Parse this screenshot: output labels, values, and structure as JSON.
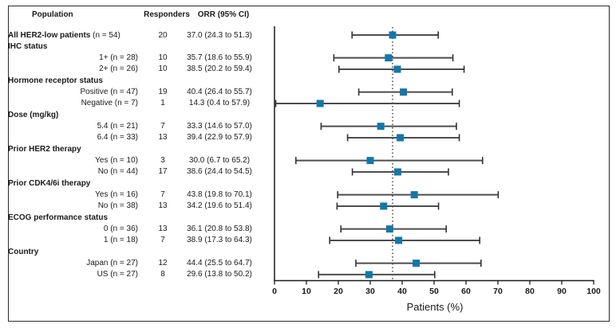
{
  "figure": {
    "columns": {
      "population": "Population",
      "responders": "Responders",
      "orr": "ORR (95% CI)"
    },
    "colors": {
      "marker": "#1477a8",
      "ci_line": "#4d4d4d",
      "ci_cap": "#333333",
      "axis": "#1a1a1a",
      "ref_line": "#1a1a1a"
    }
  },
  "chart_data": {
    "type": "forest",
    "xlabel": "Patients (%)",
    "xlim": [
      0,
      100
    ],
    "xticks": [
      0,
      10,
      20,
      30,
      40,
      50,
      60,
      70,
      80,
      90,
      100
    ],
    "ref_line": 37.0,
    "grid": false,
    "rows": [
      {
        "kind": "data",
        "bold_label": "All HER2-low patients",
        "label": " (n = 54)",
        "align": "left",
        "responders": "20",
        "orr": "37.0 (24.3 to 51.3)",
        "est": 37.0,
        "lo": 24.3,
        "hi": 51.3
      },
      {
        "kind": "group",
        "label": "IHC status"
      },
      {
        "kind": "data",
        "label": "1+ (n = 28)",
        "align": "right",
        "responders": "10",
        "orr": "35.7 (18.6 to 55.9)",
        "est": 35.7,
        "lo": 18.6,
        "hi": 55.9
      },
      {
        "kind": "data",
        "label": "2+ (n = 26)",
        "align": "right",
        "responders": "10",
        "orr": "38.5 (20.2 to 59.4)",
        "est": 38.5,
        "lo": 20.2,
        "hi": 59.4
      },
      {
        "kind": "group",
        "label": "Hormone receptor status"
      },
      {
        "kind": "data",
        "label": "Positive (n = 47)",
        "align": "right",
        "responders": "19",
        "orr": "40.4 (26.4 to 55.7)",
        "est": 40.4,
        "lo": 26.4,
        "hi": 55.7
      },
      {
        "kind": "data",
        "label": "Negative (n = 7)",
        "align": "right",
        "responders": "1",
        "orr": "14.3 (0.4 to 57.9)",
        "est": 14.3,
        "lo": 0.4,
        "hi": 57.9
      },
      {
        "kind": "group",
        "label": "Dose (mg/kg)"
      },
      {
        "kind": "data",
        "label": "5.4 (n = 21)",
        "align": "right",
        "responders": "7",
        "orr": "33.3 (14.6 to 57.0)",
        "est": 33.3,
        "lo": 14.6,
        "hi": 57.0
      },
      {
        "kind": "data",
        "label": "6.4 (n = 33)",
        "align": "right",
        "responders": "13",
        "orr": "39.4 (22.9 to 57.9)",
        "est": 39.4,
        "lo": 22.9,
        "hi": 57.9
      },
      {
        "kind": "group",
        "label": "Prior HER2 therapy"
      },
      {
        "kind": "data",
        "label": "Yes (n = 10)",
        "align": "right",
        "responders": "3",
        "orr": "30.0 (6.7 to 65.2)",
        "est": 30.0,
        "lo": 6.7,
        "hi": 65.2
      },
      {
        "kind": "data",
        "label": "No (n = 44)",
        "align": "right",
        "responders": "17",
        "orr": "38.6 (24.4 to 54.5)",
        "est": 38.6,
        "lo": 24.4,
        "hi": 54.5
      },
      {
        "kind": "group",
        "label": "Prior CDK4/6i therapy"
      },
      {
        "kind": "data",
        "label": "Yes (n = 16)",
        "align": "right",
        "responders": "7",
        "orr": "43.8 (19.8 to 70.1)",
        "est": 43.8,
        "lo": 19.8,
        "hi": 70.1
      },
      {
        "kind": "data",
        "label": "No (n = 38)",
        "align": "right",
        "responders": "13",
        "orr": "34.2 (19.6 to 51.4)",
        "est": 34.2,
        "lo": 19.6,
        "hi": 51.4
      },
      {
        "kind": "group",
        "label": "ECOG performance status"
      },
      {
        "kind": "data",
        "label": "0 (n = 36)",
        "align": "right",
        "responders": "13",
        "orr": "36.1 (20.8 to 53.8)",
        "est": 36.1,
        "lo": 20.8,
        "hi": 53.8
      },
      {
        "kind": "data",
        "label": "1 (n = 18)",
        "align": "right",
        "responders": "7",
        "orr": "38.9 (17.3 to 64.3)",
        "est": 38.9,
        "lo": 17.3,
        "hi": 64.3
      },
      {
        "kind": "group",
        "label": "Country"
      },
      {
        "kind": "data",
        "label": "Japan (n = 27)",
        "align": "right",
        "responders": "12",
        "orr": "44.4 (25.5 to 64.7)",
        "est": 44.4,
        "lo": 25.5,
        "hi": 64.7
      },
      {
        "kind": "data",
        "label": "US (n = 27)",
        "align": "right",
        "responders": "8",
        "orr": "29.6 (13.8 to 50.2)",
        "est": 29.6,
        "lo": 13.8,
        "hi": 50.2
      }
    ]
  }
}
